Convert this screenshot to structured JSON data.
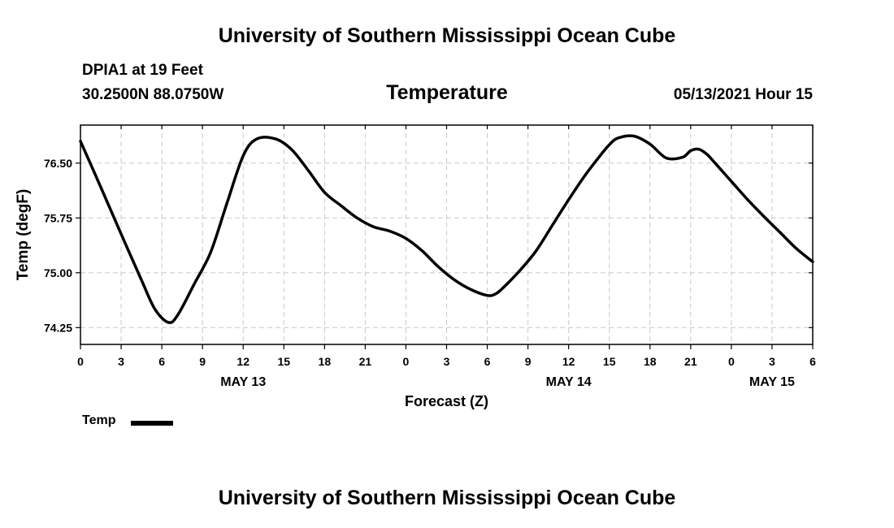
{
  "header": {
    "top_title": "University of Southern Mississippi Ocean Cube",
    "bottom_title": "University of Southern Mississippi Ocean Cube",
    "station_name": "DPIA1 at 19 Feet",
    "station_coords": "30.2500N  88.0750W",
    "chart_title": "Temperature",
    "run_time": "05/13/2021 Hour 15"
  },
  "legend": {
    "label": "Temp"
  },
  "chart_data": {
    "type": "line",
    "xlabel": "Forecast (Z)",
    "ylabel": "Temp (degF)",
    "xlim": [
      0,
      54
    ],
    "ylim": [
      74.02,
      77.02
    ],
    "x_ticks": [
      0,
      3,
      6,
      9,
      12,
      15,
      18,
      21,
      24,
      27,
      30,
      33,
      36,
      39,
      42,
      45,
      48,
      51,
      54
    ],
    "x_tick_labels": [
      "0",
      "3",
      "6",
      "9",
      "12",
      "15",
      "18",
      "21",
      "0",
      "3",
      "6",
      "9",
      "12",
      "15",
      "18",
      "21",
      "0",
      "3",
      "6"
    ],
    "y_ticks": [
      74.25,
      75.0,
      75.75,
      76.5
    ],
    "y_tick_labels": [
      "74.25",
      "75.00",
      "75.75",
      "76.50"
    ],
    "date_labels": [
      {
        "x": 12,
        "label": "MAY 13"
      },
      {
        "x": 36,
        "label": "MAY 14"
      },
      {
        "x": 51,
        "label": "MAY 15"
      }
    ],
    "grid": true,
    "legend_position": "bottom-left",
    "series": [
      {
        "name": "Temp",
        "color": "#000000",
        "x": [
          0,
          1.5,
          3,
          4.5,
          5.5,
          6.5,
          7.2,
          8.4,
          9.6,
          10.8,
          12,
          13,
          14.4,
          15.6,
          16.8,
          18,
          19.2,
          20.4,
          21.6,
          22.8,
          24,
          25.2,
          26.4,
          27.6,
          28.8,
          30,
          30.6,
          31.2,
          32.4,
          33.6,
          34.8,
          36,
          37.2,
          38.4,
          39,
          39.6,
          40.8,
          42,
          43.2,
          44.4,
          45,
          45.6,
          46.2,
          46.8,
          48,
          49.2,
          50.4,
          51.6,
          52.8,
          54
        ],
        "y": [
          76.8,
          76.17,
          75.53,
          74.9,
          74.5,
          74.32,
          74.43,
          74.85,
          75.28,
          75.95,
          76.6,
          76.83,
          76.83,
          76.68,
          76.4,
          76.1,
          75.92,
          75.75,
          75.63,
          75.57,
          75.47,
          75.3,
          75.08,
          74.9,
          74.77,
          74.69,
          74.71,
          74.8,
          75.03,
          75.3,
          75.65,
          76.0,
          76.33,
          76.62,
          76.75,
          76.84,
          76.87,
          76.76,
          76.57,
          76.58,
          76.67,
          76.69,
          76.62,
          76.5,
          76.25,
          76.0,
          75.77,
          75.55,
          75.33,
          75.15
        ]
      }
    ]
  }
}
